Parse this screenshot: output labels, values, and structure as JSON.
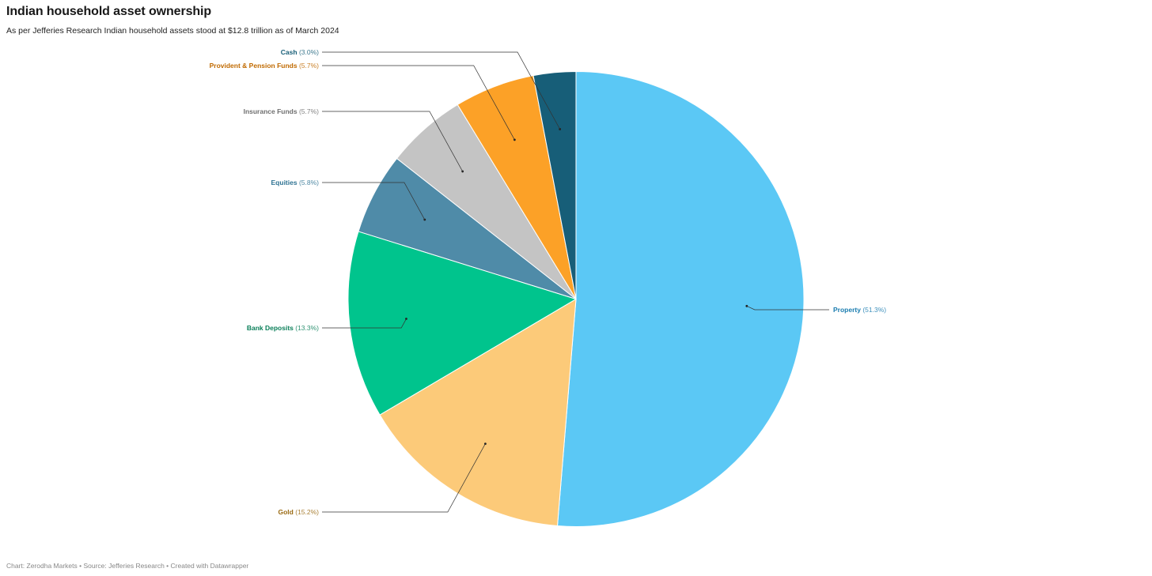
{
  "header": {
    "title": "Indian household asset ownership",
    "subtitle": "As per Jefferies Research Indian household assets stood at $12.8 trillion as of March 2024"
  },
  "footer": {
    "text": "Chart: Zerodha Markets • Source: Jefferies Research • Created with Datawrapper"
  },
  "chart_data": {
    "type": "pie",
    "title": "Indian household asset ownership",
    "subtitle": "As per Jefferies Research Indian household assets stood at $12.8 trillion as of March 2024",
    "unit": "%",
    "slices": [
      {
        "name": "Property",
        "value": 51.3,
        "display": "(51.3%)",
        "color": "#5BC8F5",
        "label_color": "#1B7DB0"
      },
      {
        "name": "Gold",
        "value": 15.2,
        "display": "(15.2%)",
        "color": "#FCCA79",
        "label_color": "#9A6A12"
      },
      {
        "name": "Bank Deposits",
        "value": 13.3,
        "display": "(13.3%)",
        "color": "#00C48D",
        "label_color": "#0A7F59"
      },
      {
        "name": "Equities",
        "value": 5.8,
        "display": "(5.8%)",
        "color": "#4F8BA8",
        "label_color": "#2F7393"
      },
      {
        "name": "Insurance Funds",
        "value": 5.7,
        "display": "(5.7%)",
        "color": "#C4C4C4",
        "label_color": "#6F6F6F"
      },
      {
        "name": "Provident & Pension Funds",
        "value": 5.7,
        "display": "(5.7%)",
        "color": "#FCA127",
        "label_color": "#C06A00"
      },
      {
        "name": "Cash",
        "value": 3.0,
        "display": "(3.0%)",
        "color": "#175E78",
        "label_color": "#175E78"
      }
    ],
    "start": "12 o'clock",
    "direction": "clockwise",
    "legend": "none",
    "labels": "outside with leader lines"
  }
}
